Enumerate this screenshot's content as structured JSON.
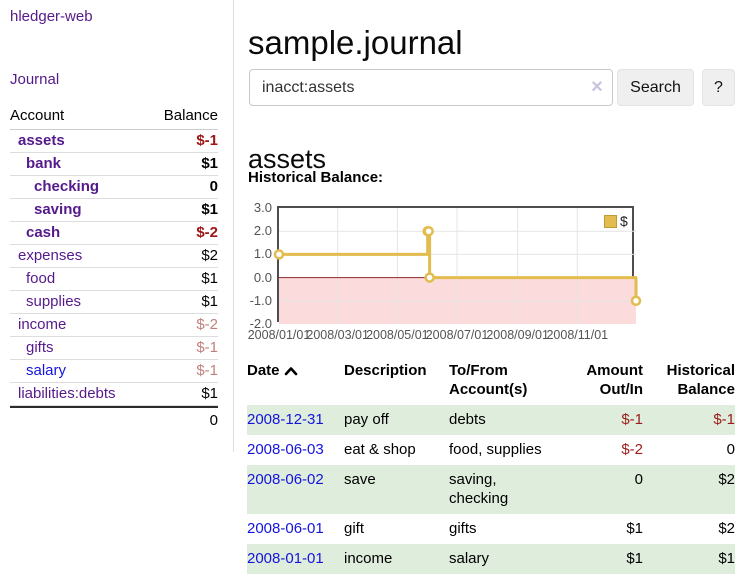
{
  "sidebar": {
    "brand": "hledger-web",
    "nav": {
      "journal": "Journal"
    },
    "accounts_table": {
      "headers": {
        "account": "Account",
        "balance": "Balance"
      },
      "rows": [
        {
          "name": "assets",
          "balance": "$-1"
        },
        {
          "name": "bank",
          "balance": "$1"
        },
        {
          "name": "checking",
          "balance": "0"
        },
        {
          "name": "saving",
          "balance": "$1"
        },
        {
          "name": "cash",
          "balance": "$-2"
        },
        {
          "name": "expenses",
          "balance": "$2"
        },
        {
          "name": "food",
          "balance": "$1"
        },
        {
          "name": "supplies",
          "balance": "$1"
        },
        {
          "name": "income",
          "balance": "$-2"
        },
        {
          "name": "gifts",
          "balance": "$-1"
        },
        {
          "name": "salary",
          "balance": "$-1"
        },
        {
          "name": "liabilities:debts",
          "balance": "$1"
        }
      ],
      "total": "0"
    }
  },
  "main": {
    "title": "sample.journal",
    "search": {
      "value": "inacct:assets",
      "clear_icon": "×",
      "button_label": "Search",
      "help_label": "?"
    },
    "account_heading": "assets",
    "section_label": "Historical Balance:"
  },
  "chart_data": {
    "type": "line",
    "step": true,
    "title": "Historical Balance",
    "series": [
      {
        "name": "$",
        "color": "#E3BC4F",
        "points": [
          [
            "2008-01-01",
            1
          ],
          [
            "2008-06-01",
            2
          ],
          [
            "2008-06-02",
            2
          ],
          [
            "2008-06-03",
            0
          ],
          [
            "2008-12-31",
            -1
          ]
        ]
      }
    ],
    "x_ticks": [
      "2008/01/01",
      "2008/03/01",
      "2008/05/01",
      "2008/07/01",
      "2008/09/01",
      "2008/11/01"
    ],
    "y_ticks": [
      3.0,
      2.0,
      1.0,
      0.0,
      -1.0,
      -2.0
    ],
    "xlim": [
      "2008-01-01",
      "2008-12-31"
    ],
    "ylim": [
      -2,
      3
    ],
    "legend_position": "top-right",
    "grid": true,
    "colors": {
      "grid": "#e4e4e4",
      "zero_line": "#8F2727",
      "negative_region": "#FBDBDB",
      "plot_border": "#4d4d4d"
    }
  },
  "register": {
    "headers": {
      "date": "Date",
      "description": "Description",
      "accounts": "To/From Account(s)",
      "amount": "Amount Out/In",
      "balance": "Historical Balance"
    },
    "rows": [
      {
        "date": "2008-12-31",
        "description": "pay off",
        "accounts": "debts",
        "amount": "$-1",
        "balance": "$-1"
      },
      {
        "date": "2008-06-03",
        "description": "eat & shop",
        "accounts": "food, supplies",
        "amount": "$-2",
        "balance": "0"
      },
      {
        "date": "2008-06-02",
        "description": "save",
        "accounts": "saving, checking",
        "amount": "0",
        "balance": "$2"
      },
      {
        "date": "2008-06-01",
        "description": "gift",
        "accounts": "gifts",
        "amount": "$1",
        "balance": "$2"
      },
      {
        "date": "2008-01-01",
        "description": "income",
        "accounts": "salary",
        "amount": "$1",
        "balance": "$1"
      }
    ]
  }
}
